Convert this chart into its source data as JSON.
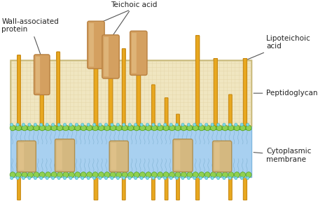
{
  "bg_color": "#ffffff",
  "pg_fill": "#f0e6c0",
  "pg_texture_dot": "#e0d0a0",
  "pg_edge": "#c8b878",
  "stem_fill": "#e8a820",
  "stem_edge": "#c88810",
  "head_fill": "#d4a060",
  "head_edge": "#b88040",
  "head_shadow": "#c09050",
  "mem_blue": "#a8d0f0",
  "mem_blue_dark": "#80b8e0",
  "mem_green_stripe": "#60b840",
  "bead_fill": "#90d050",
  "bead_edge": "#50a020",
  "bead_cyan": "#80d8e8",
  "prot_fill": "#d4b880",
  "prot_edge": "#b09050",
  "label_color": "#222222",
  "arrow_color": "#555555",
  "labels": {
    "wall_associated": "Wall-associated\nprotein",
    "teichoic": "Teichoic acid",
    "lipoteichoic": "Lipoteichoic\nacid",
    "peptidoglycan": "Peptidoglycan",
    "cytoplasmic": "Cytoplasmic\nmembrane"
  }
}
